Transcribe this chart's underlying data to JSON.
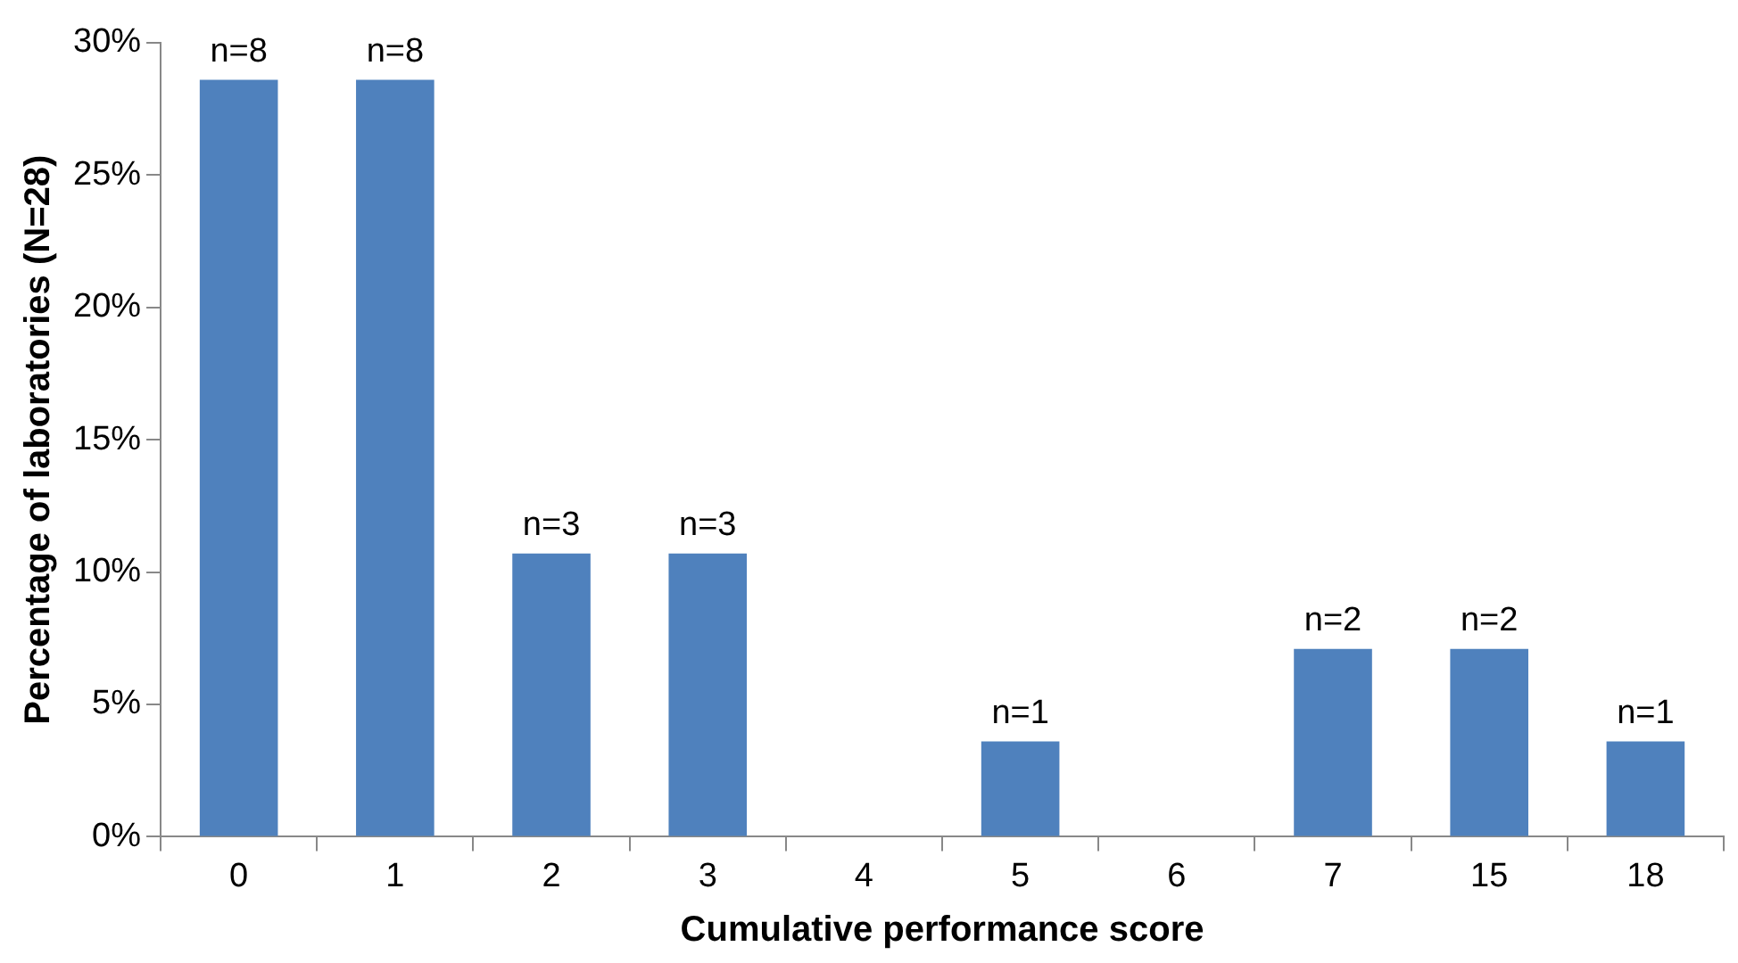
{
  "chart_data": {
    "type": "bar",
    "xlabel": "Cumulative performance score",
    "ylabel": "Percentage of laboratories (N=28)",
    "categories": [
      "0",
      "1",
      "2",
      "3",
      "4",
      "5",
      "6",
      "7",
      "15",
      "18"
    ],
    "values": [
      28.6,
      28.6,
      10.7,
      10.7,
      0,
      3.6,
      0,
      7.1,
      7.1,
      3.6
    ],
    "annotations": [
      {
        "text": "n=8",
        "x": "0",
        "y": 28.6
      },
      {
        "text": "n=8",
        "x": "1",
        "y": 28.6
      },
      {
        "text": "n=3",
        "x": "2",
        "y": 10.7
      },
      {
        "text": "n=3",
        "x": "3",
        "y": 10.7
      },
      {
        "text": "n=1",
        "x": "5",
        "y": 3.6
      },
      {
        "text": "n=2",
        "x": "7",
        "y": 7.1
      },
      {
        "text": "n=2",
        "x": "15",
        "y": 7.1
      },
      {
        "text": "n=1",
        "x": "18",
        "y": 3.6
      }
    ],
    "color": "#4f81bd",
    "ylim": [
      0,
      30
    ],
    "yticks": [
      {
        "value": 0,
        "label": "0%"
      },
      {
        "value": 5,
        "label": "5%"
      },
      {
        "value": 10,
        "label": "10%"
      },
      {
        "value": 15,
        "label": "15%"
      },
      {
        "value": 20,
        "label": "20%"
      },
      {
        "value": 25,
        "label": "25%"
      },
      {
        "value": 30,
        "label": "30%"
      }
    ],
    "grid": false,
    "legend": false
  }
}
